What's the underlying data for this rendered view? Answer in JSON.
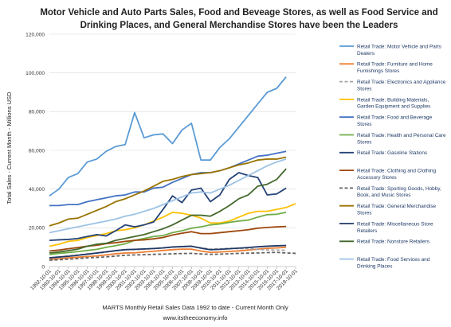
{
  "chart_data": {
    "type": "line",
    "title": [
      "Motor Vehicle and Auto Parts Sales, Food and Beveage Stores, as well as Food Service and",
      "Drinking Places, and General Merchandise Stores have been the Leaders"
    ],
    "ylabel": "Total Sales - Current Month - Millions USD",
    "xlabel": "",
    "source": "MARTS Monthly Retail Sales Data 1992 to date - Current Month Only",
    "website": "www.itstheeconomy.info",
    "ylim": [
      0,
      120000
    ],
    "yticks": [
      0,
      20000,
      40000,
      60000,
      80000,
      100000,
      120000
    ],
    "ytick_labels": [
      "0",
      "20,000",
      "40,000",
      "60,000",
      "80,000",
      "100,000",
      "120,000"
    ],
    "x": [
      "1992-10-01",
      "1993-10-01",
      "1994-10-01",
      "1995-10-01",
      "1996-10-01",
      "1997-10-01",
      "1998-10-01",
      "1999-10-01",
      "2000-10-01",
      "2001-10-01",
      "2002-10-01",
      "2003-10-01",
      "2004-10-01",
      "2005-10-01",
      "2006-10-01",
      "2007-10-01",
      "2008-10-01",
      "2009-10-01",
      "2010-10-01",
      "2011-10-01",
      "2012-10-01",
      "2013-10-01",
      "2014-10-01",
      "2015-10-01",
      "2016-10-01",
      "2017-10-01",
      "2018-10-01"
    ],
    "grid": "horizontal",
    "legend_position": "right",
    "series": [
      {
        "name": "Retail Trade: Motor Vehicle and Parts Dealers",
        "color": "#5b9bd5",
        "dash": "solid",
        "values": [
          36500,
          40000,
          46000,
          48000,
          54000,
          55500,
          59500,
          62000,
          63000,
          79500,
          66500,
          68000,
          68500,
          63500,
          70500,
          74000,
          55000,
          55000,
          61500,
          66000,
          72000,
          78000,
          84000,
          90000,
          92000,
          98000,
          null
        ]
      },
      {
        "name": "Retail Trade: Furniture and Home Furnishings Stores",
        "color": "#ed7d31",
        "dash": "solid",
        "values": [
          3700,
          4000,
          4500,
          4800,
          5200,
          5500,
          6000,
          6600,
          7000,
          7100,
          7500,
          7900,
          8300,
          8700,
          9000,
          9000,
          8000,
          7300,
          7500,
          7800,
          8100,
          8500,
          9000,
          9400,
          9600,
          10000,
          null
        ]
      },
      {
        "name": "Retail Trade: Electronics and Appliance Stores",
        "color": "#a5a5a5",
        "dash": "dashed",
        "values": [
          4500,
          4900,
          5500,
          6000,
          6500,
          6900,
          7400,
          8200,
          8800,
          8700,
          8900,
          9300,
          9700,
          10000,
          10300,
          10400,
          9700,
          9000,
          9200,
          9400,
          9300,
          9300,
          8800,
          8600,
          8500,
          8400,
          null
        ]
      },
      {
        "name": "Retail Trade: Building Materials, Garden Equipment and Supplies",
        "color": "#ffc000",
        "dash": "solid",
        "values": [
          10500,
          11500,
          13000,
          13500,
          15000,
          16000,
          17000,
          18500,
          19000,
          20000,
          21500,
          23500,
          25500,
          28000,
          27500,
          26500,
          25000,
          22500,
          22500,
          23500,
          25500,
          27500,
          28500,
          28500,
          29500,
          30500,
          32500
        ]
      },
      {
        "name": "Retail Trade: Food and Beverage Stores",
        "color": "#4472c4",
        "dash": "solid",
        "values": [
          31500,
          31500,
          32000,
          32000,
          33500,
          34500,
          35500,
          36500,
          37000,
          38500,
          38500,
          40500,
          41000,
          43500,
          45500,
          47500,
          48500,
          48500,
          49500,
          51000,
          53000,
          55000,
          57000,
          57500,
          58500,
          59500,
          null
        ]
      },
      {
        "name": "Retail Trade: Health and Personal Care Stores",
        "color": "#70ad47",
        "dash": "solid",
        "values": [
          6200,
          6800,
          7200,
          7700,
          8300,
          8900,
          9900,
          10800,
          11700,
          13500,
          14500,
          15500,
          16000,
          17500,
          18500,
          19800,
          20500,
          21500,
          22000,
          22800,
          23500,
          24000,
          25500,
          26800,
          27000,
          28000,
          null
        ]
      },
      {
        "name": "Retail Trade: Gasoline Stations",
        "color": "#264478",
        "dash": "solid",
        "values": [
          13500,
          13800,
          14000,
          14500,
          15500,
          16500,
          15800,
          18500,
          21500,
          20500,
          21500,
          23000,
          29500,
          36500,
          33000,
          39500,
          40500,
          33500,
          37000,
          45000,
          48500,
          47000,
          46000,
          37000,
          37500,
          40500,
          null
        ]
      },
      {
        "name": "Retail Trade: Clothing and Clothing Accessory Stores",
        "color": "#9e480e",
        "dash": "solid",
        "values": [
          8000,
          8500,
          9200,
          9800,
          10500,
          11000,
          11800,
          12300,
          13000,
          13500,
          13800,
          14300,
          15000,
          16300,
          17200,
          18000,
          17000,
          17000,
          17500,
          18000,
          18500,
          19000,
          19800,
          20200,
          20500,
          20700,
          null
        ]
      },
      {
        "name": "Retail Trade: Sporting Goods, Hobby, Book, and Music Stores",
        "color": "#636363",
        "dash": "dashed",
        "values": [
          3300,
          3500,
          3800,
          4100,
          4500,
          4700,
          5000,
          5400,
          5800,
          6000,
          6100,
          6300,
          6400,
          6600,
          6700,
          6800,
          6500,
          6300,
          6400,
          6600,
          6800,
          6900,
          7000,
          7200,
          7300,
          7000,
          6800
        ]
      },
      {
        "name": "Retail Trade: General Merchandise Stores",
        "color": "#997300",
        "dash": "solid",
        "values": [
          21000,
          22500,
          24500,
          25000,
          27000,
          29000,
          31000,
          33500,
          35000,
          37000,
          39000,
          41500,
          44000,
          45000,
          46500,
          47500,
          48000,
          48500,
          49500,
          51000,
          52500,
          53500,
          55000,
          55500,
          55500,
          56500,
          null
        ]
      },
      {
        "name": "Retail Trade: Miscellaneous Store Retailers",
        "color": "#203864",
        "dash": "solid",
        "values": [
          4500,
          4900,
          5300,
          5800,
          6400,
          7000,
          7600,
          8200,
          8700,
          8900,
          9100,
          9300,
          9600,
          10100,
          10300,
          10500,
          9500,
          8700,
          8900,
          9200,
          9500,
          9800,
          10200,
          10500,
          10700,
          10900,
          null
        ]
      },
      {
        "name": "Retail Trade: Nonstore Retailers",
        "color": "#43682b",
        "dash": "solid",
        "values": [
          7000,
          7500,
          8200,
          9000,
          10500,
          11500,
          12000,
          13500,
          14500,
          15500,
          16500,
          18000,
          19500,
          21500,
          24000,
          26500,
          26500,
          26000,
          28500,
          31500,
          35000,
          37000,
          41500,
          42500,
          45000,
          50500,
          null
        ]
      },
      {
        "name": "Retail Trade: Food Services and Drinking Places",
        "color": "#9dc3e6",
        "dash": "solid",
        "values": [
          17500,
          18500,
          19500,
          20500,
          21500,
          22500,
          23500,
          24500,
          26000,
          27000,
          28500,
          30000,
          32000,
          34000,
          36000,
          38000,
          38500,
          38000,
          40000,
          42000,
          44500,
          47000,
          49500,
          52000,
          54000,
          55500,
          null
        ]
      }
    ]
  }
}
